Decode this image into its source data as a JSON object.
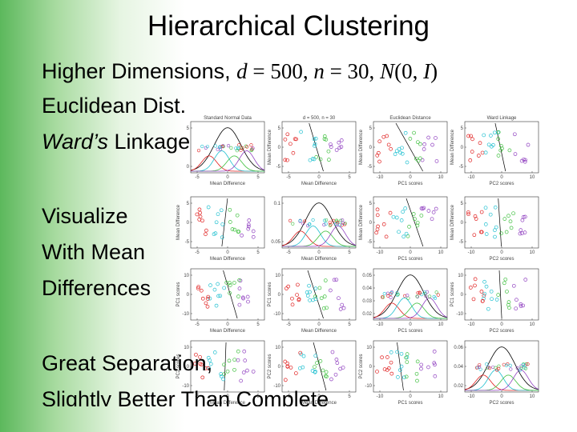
{
  "title": "Hierarchical Clustering",
  "bullets": [
    [
      {
        "text": "Higher Dimensions, "
      },
      {
        "text": "d",
        "style": "math"
      },
      {
        "text": " = 500, ",
        "style": "mathup"
      },
      {
        "text": "n",
        "style": "math"
      },
      {
        "text": " = 30, ",
        "style": "mathup"
      },
      {
        "text": "N",
        "style": "math"
      },
      {
        "text": "(0, ",
        "style": "mathup"
      },
      {
        "text": "I",
        "style": "math"
      },
      {
        "text": ")",
        "style": "mathup"
      }
    ],
    [
      {
        "text": "Euclidean Dist."
      }
    ],
    [
      {
        "text": "Ward’s",
        "style": "italic"
      },
      {
        "text": " Linkage"
      }
    ],
    [
      {
        "text": "Visualize"
      }
    ],
    [
      {
        "text": "With Mean"
      }
    ],
    [
      {
        "text": "Differences"
      }
    ],
    [
      {
        "text": "Great Separation,"
      }
    ],
    [
      {
        "text": "Slightly Better Than Complete"
      }
    ]
  ],
  "panels": [
    {
      "title": "Standard Normal Data",
      "xlabel": "Mean Difference",
      "xticks": [
        -5,
        0,
        5
      ],
      "yticks": [
        0,
        5
      ],
      "kind": "density"
    },
    {
      "title": "d = 500, n = 30",
      "xlabel": "Mean Difference",
      "ylabel": "Mean Difference",
      "xticks": [
        -5,
        0,
        5
      ],
      "yticks": [
        -5,
        0,
        5
      ],
      "kind": "scatter"
    },
    {
      "title": "Euclidean Distance",
      "xlabel": "PC1 scores",
      "ylabel": "Mean Difference",
      "xticks": [
        -10,
        0,
        10
      ],
      "yticks": [
        -5,
        0,
        5
      ],
      "kind": "scatter"
    },
    {
      "title": "Ward Linkage",
      "xlabel": "PC2 scores",
      "ylabel": "Mean Difference",
      "xticks": [
        -10,
        0,
        10
      ],
      "yticks": [
        -5,
        0,
        5
      ],
      "kind": "scatter"
    },
    {
      "xlabel": "Mean Difference",
      "ylabel": "Mean Difference",
      "xticks": [
        -5,
        0,
        5
      ],
      "yticks": [
        -5,
        0,
        5
      ],
      "kind": "scatter"
    },
    {
      "xlabel": "Mean Difference",
      "xticks": [
        -5,
        0,
        5
      ],
      "yticks": [
        0.05,
        0.1
      ],
      "kind": "density"
    },
    {
      "xlabel": "PC1 scores",
      "ylabel": "Mean Difference",
      "xticks": [
        -10,
        0,
        10
      ],
      "yticks": [
        -5,
        0,
        5
      ],
      "kind": "scatter"
    },
    {
      "xlabel": "PC2 scores",
      "ylabel": "Mean Difference",
      "xticks": [
        -10,
        0,
        10
      ],
      "yticks": [
        -5,
        0,
        5
      ],
      "kind": "scatter"
    },
    {
      "xlabel": "Mean Difference",
      "ylabel": "PC1 scores",
      "xticks": [
        -5,
        0,
        5
      ],
      "yticks": [
        -10,
        0,
        10
      ],
      "kind": "scatter"
    },
    {
      "xlabel": "Mean Difference",
      "ylabel": "PC1 scores",
      "xticks": [
        -5,
        0,
        5
      ],
      "yticks": [
        -10,
        0,
        10
      ],
      "kind": "scatter"
    },
    {
      "xlabel": "PC1 scores",
      "xticks": [
        -10,
        0,
        10
      ],
      "yticks": [
        0.02,
        0.03,
        0.04,
        0.05
      ],
      "kind": "density"
    },
    {
      "xlabel": "PC2 scores",
      "ylabel": "PC1 scores",
      "xticks": [
        -10,
        0,
        10
      ],
      "yticks": [
        -10,
        0,
        10
      ],
      "kind": "scatter"
    },
    {
      "xlabel": "Mean Difference",
      "ylabel": "PC2 scores",
      "xticks": [
        -5,
        0,
        5
      ],
      "yticks": [
        -10,
        0,
        10
      ],
      "kind": "scatter"
    },
    {
      "xlabel": "Mean Difference",
      "ylabel": "PC2 scores",
      "xticks": [
        -5,
        0,
        5
      ],
      "yticks": [
        -10,
        0,
        10
      ],
      "kind": "scatter"
    },
    {
      "xlabel": "PC1 scores",
      "ylabel": "PC2 scores",
      "xticks": [
        -10,
        0,
        10
      ],
      "yticks": [
        -10,
        0,
        10
      ],
      "kind": "scatter"
    },
    {
      "xlabel": "PC2 scores",
      "xticks": [
        -10,
        0,
        10
      ],
      "yticks": [
        0.02,
        0.04,
        0.06
      ],
      "kind": "density"
    }
  ]
}
